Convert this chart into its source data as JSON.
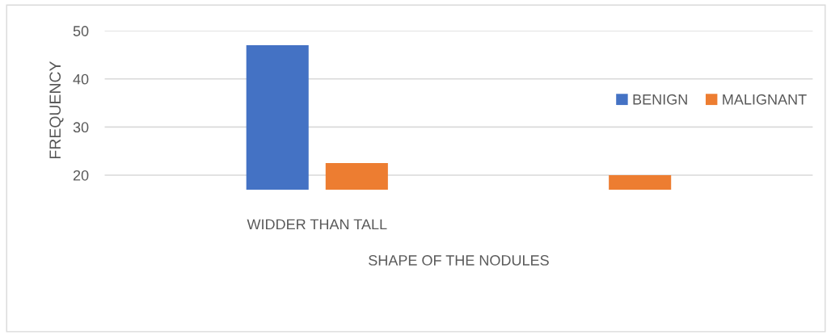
{
  "chart_data": {
    "type": "bar",
    "xlabel": "SHAPE OF THE NODULES",
    "ylabel": "FREQUENCY",
    "categories": [
      "WIDDER THAN TALL",
      null
    ],
    "series": [
      {
        "name": "BENIGN",
        "color": "#4472c4",
        "values": [
          47,
          null
        ]
      },
      {
        "name": "MALIGNANT",
        "color": "#ed7d31",
        "values": [
          22.5,
          20
        ]
      }
    ],
    "ylim": [
      17,
      50
    ],
    "yticks": [
      20,
      30,
      40,
      50
    ],
    "grid": "y",
    "legend": "right"
  }
}
